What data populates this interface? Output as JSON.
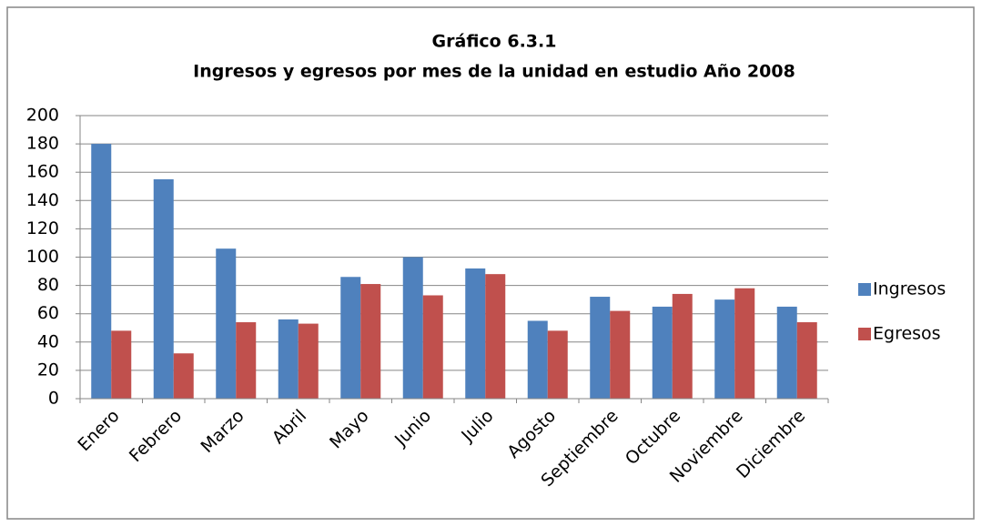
{
  "chart_data": {
    "type": "bar",
    "title": "Gráfico 6.3.1",
    "subtitle": "Ingresos y egresos por mes de la unidad en estudio Año 2008",
    "categories": [
      "Enero",
      "Febrero",
      "Marzo",
      "Abril",
      "Mayo",
      "Junio",
      "Julio",
      "Agosto",
      "Septiembre",
      "Octubre",
      "Noviembre",
      "Diciembre"
    ],
    "series": [
      {
        "name": "Ingresos",
        "color": "#4f81bd",
        "values": [
          180,
          155,
          106,
          56,
          86,
          100,
          92,
          55,
          72,
          65,
          70,
          65
        ]
      },
      {
        "name": "Egresos",
        "color": "#c0504d",
        "values": [
          48,
          32,
          54,
          53,
          81,
          73,
          88,
          48,
          62,
          74,
          78,
          54
        ]
      }
    ],
    "ylim": [
      0,
      200
    ],
    "yticks": [
      0,
      20,
      40,
      60,
      80,
      100,
      120,
      140,
      160,
      180,
      200
    ],
    "grid": true,
    "legend": "right"
  }
}
